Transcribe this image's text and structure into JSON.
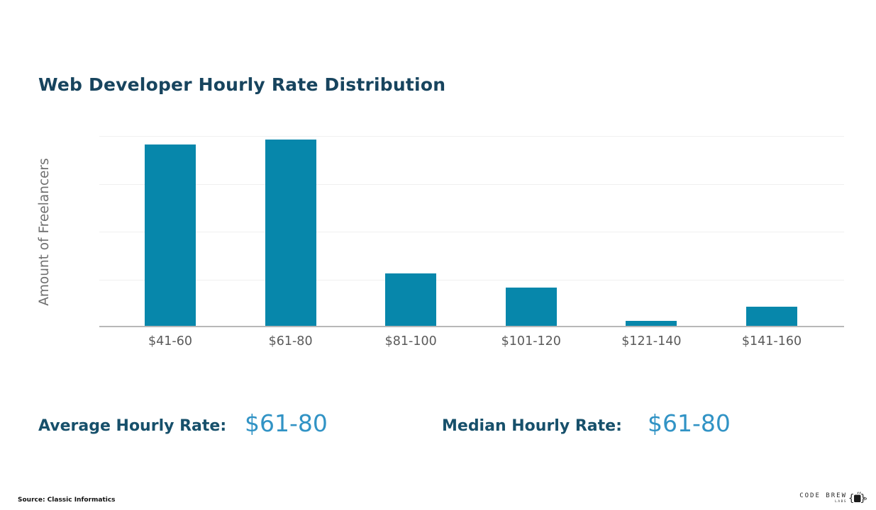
{
  "page": {
    "title": "Web Developer Hourly Rate Distribution"
  },
  "chart_data": {
    "type": "bar",
    "title": "Web Developer Hourly Rate Distribution",
    "categories": [
      "$41-60",
      "$61-80",
      "$81-100",
      "$101-120",
      "$121-140",
      "$141-160"
    ],
    "values": [
      38,
      39,
      11,
      8,
      1,
      4
    ],
    "xlabel": "",
    "ylabel": "Amount of Freelancers",
    "ylim": [
      0,
      40
    ],
    "y_gridline_step": 10,
    "y_tick_labels_visible": false,
    "grid": "horizontal",
    "legend": "none",
    "bar_color": "#0787ab"
  },
  "stats": {
    "average": {
      "label": "Average Hourly Rate:",
      "value": "$61-80"
    },
    "median": {
      "label": "Median Hourly Rate:",
      "value": "$61-80"
    }
  },
  "footer": {
    "source": "Source: Classic Informatics",
    "logo": {
      "brand": "CODE BREW",
      "sub": "LABS",
      "icon": "mug-in-code-braces-icon"
    }
  },
  "colors": {
    "bar": "#0787ab",
    "title_text": "#17445e",
    "stat_label_text": "#17506b",
    "stat_value_text": "#3193c5",
    "axis_tick_text": "#5a5a5a",
    "axis_title_text": "#6f6f6f",
    "gridline": "#f0f0f0",
    "baseline": "#b8b8b8"
  }
}
